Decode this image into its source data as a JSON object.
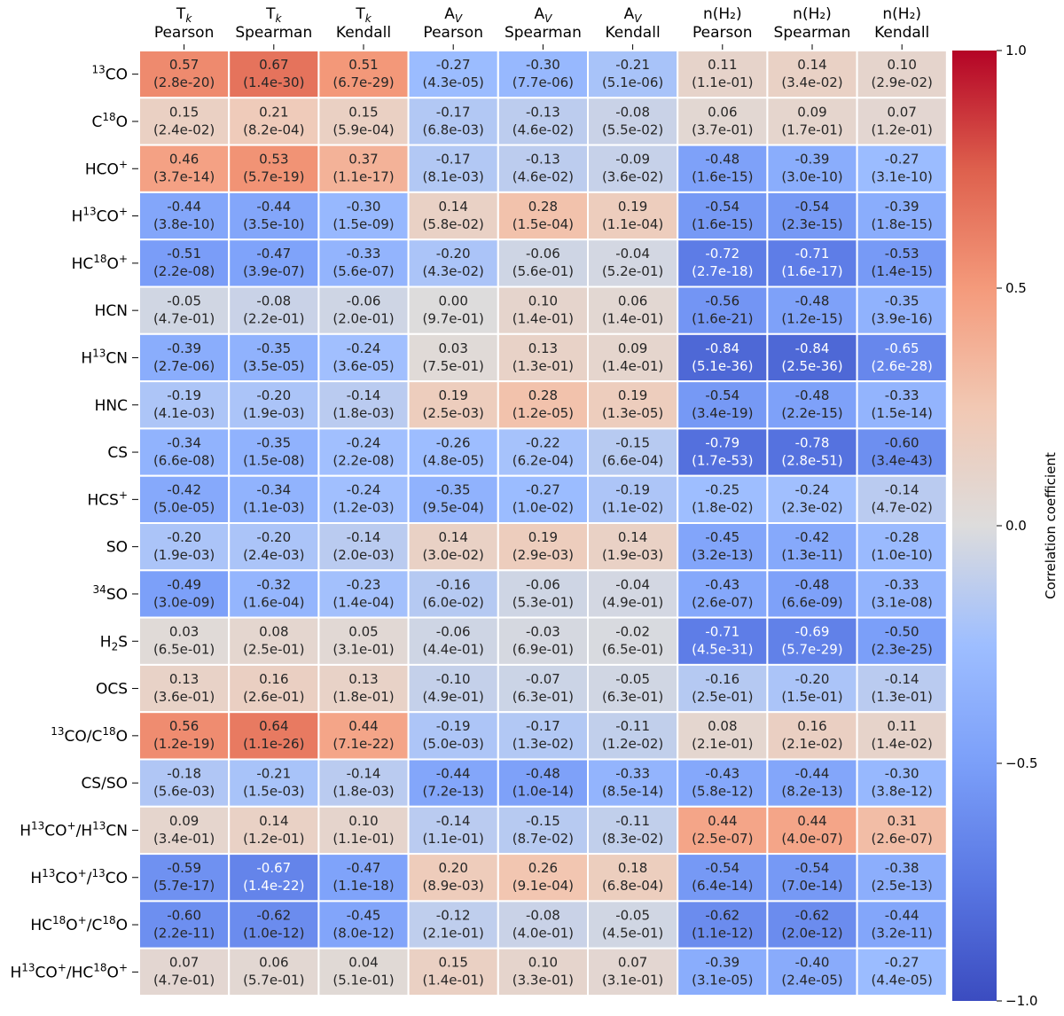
{
  "chart_data": {
    "type": "heatmap",
    "colorbar": {
      "label": "Correlation coefficient",
      "vmin": -1.0,
      "vmax": 1.0,
      "ticks": [
        1.0,
        0.5,
        0.0,
        -0.5,
        -1.0
      ],
      "tick_labels": [
        "1.0",
        "0.5",
        "0.0",
        "−0.5",
        "−1.0"
      ],
      "colormap": "coolwarm"
    },
    "columns": [
      {
        "var": "T",
        "sub": "k",
        "method": "Pearson"
      },
      {
        "var": "T",
        "sub": "k",
        "method": "Spearman"
      },
      {
        "var": "T",
        "sub": "k",
        "method": "Kendall"
      },
      {
        "var": "A",
        "sub": "V",
        "method": "Pearson"
      },
      {
        "var": "A",
        "sub": "V",
        "method": "Spearman"
      },
      {
        "var": "A",
        "sub": "V",
        "method": "Kendall"
      },
      {
        "var": "n(H₂)",
        "sub": "",
        "method": "Pearson"
      },
      {
        "var": "n(H₂)",
        "sub": "",
        "method": "Spearman"
      },
      {
        "var": "n(H₂)",
        "sub": "",
        "method": "Kendall"
      }
    ],
    "rows": [
      {
        "label": "13CO",
        "parts": [
          [
            "13",
            "sup"
          ],
          [
            "CO",
            ""
          ]
        ],
        "values": [
          0.57,
          0.67,
          0.51,
          -0.27,
          -0.3,
          -0.21,
          0.11,
          0.14,
          0.1
        ],
        "pvalues": [
          "2.8e-20",
          "1.4e-30",
          "6.7e-29",
          "4.3e-05",
          "7.7e-06",
          "5.1e-06",
          "1.1e-01",
          "3.4e-02",
          "2.9e-02"
        ]
      },
      {
        "label": "C18O",
        "parts": [
          [
            "C",
            ""
          ],
          [
            "18",
            "sup"
          ],
          [
            "O",
            ""
          ]
        ],
        "values": [
          0.15,
          0.21,
          0.15,
          -0.17,
          -0.13,
          -0.08,
          0.06,
          0.09,
          0.07
        ],
        "pvalues": [
          "2.4e-02",
          "8.2e-04",
          "5.9e-04",
          "6.8e-03",
          "4.6e-02",
          "5.5e-02",
          "3.7e-01",
          "1.7e-01",
          "1.2e-01"
        ]
      },
      {
        "label": "HCO+",
        "parts": [
          [
            "HCO",
            ""
          ],
          [
            "+",
            "sup"
          ]
        ],
        "values": [
          0.46,
          0.53,
          0.37,
          -0.17,
          -0.13,
          -0.09,
          -0.48,
          -0.39,
          -0.27
        ],
        "pvalues": [
          "3.7e-14",
          "5.7e-19",
          "1.1e-17",
          "8.1e-03",
          "4.6e-02",
          "3.6e-02",
          "1.6e-15",
          "3.0e-10",
          "3.1e-10"
        ]
      },
      {
        "label": "H13CO+",
        "parts": [
          [
            "H",
            ""
          ],
          [
            "13",
            "sup"
          ],
          [
            "CO",
            ""
          ],
          [
            "+",
            "sup"
          ]
        ],
        "values": [
          -0.44,
          -0.44,
          -0.3,
          0.14,
          0.28,
          0.19,
          -0.54,
          -0.54,
          -0.39
        ],
        "pvalues": [
          "3.8e-10",
          "3.5e-10",
          "1.5e-09",
          "5.8e-02",
          "1.5e-04",
          "1.1e-04",
          "1.6e-15",
          "2.3e-15",
          "1.8e-15"
        ]
      },
      {
        "label": "HC18O+",
        "parts": [
          [
            "HC",
            ""
          ],
          [
            "18",
            "sup"
          ],
          [
            "O",
            ""
          ],
          [
            "+",
            "sup"
          ]
        ],
        "values": [
          -0.51,
          -0.47,
          -0.33,
          -0.2,
          -0.06,
          -0.04,
          -0.72,
          -0.71,
          -0.53
        ],
        "pvalues": [
          "2.2e-08",
          "3.9e-07",
          "5.6e-07",
          "4.3e-02",
          "5.6e-01",
          "5.2e-01",
          "2.7e-18",
          "1.6e-17",
          "1.4e-15"
        ]
      },
      {
        "label": "HCN",
        "parts": [
          [
            "HCN",
            ""
          ]
        ],
        "values": [
          -0.05,
          -0.08,
          -0.06,
          0.0,
          0.1,
          0.06,
          -0.56,
          -0.48,
          -0.35
        ],
        "pvalues": [
          "4.7e-01",
          "2.2e-01",
          "2.0e-01",
          "9.7e-01",
          "1.4e-01",
          "1.4e-01",
          "1.6e-21",
          "1.2e-15",
          "3.9e-16"
        ]
      },
      {
        "label": "H13CN",
        "parts": [
          [
            "H",
            ""
          ],
          [
            "13",
            "sup"
          ],
          [
            "CN",
            ""
          ]
        ],
        "values": [
          -0.39,
          -0.35,
          -0.24,
          0.03,
          0.13,
          0.09,
          -0.84,
          -0.84,
          -0.65
        ],
        "pvalues": [
          "2.7e-06",
          "3.5e-05",
          "3.6e-05",
          "7.5e-01",
          "1.3e-01",
          "1.4e-01",
          "5.1e-36",
          "2.5e-36",
          "2.6e-28"
        ]
      },
      {
        "label": "HNC",
        "parts": [
          [
            "HNC",
            ""
          ]
        ],
        "values": [
          -0.19,
          -0.2,
          -0.14,
          0.19,
          0.28,
          0.19,
          -0.54,
          -0.48,
          -0.33
        ],
        "pvalues": [
          "4.1e-03",
          "1.9e-03",
          "1.8e-03",
          "2.5e-03",
          "1.2e-05",
          "1.3e-05",
          "3.4e-19",
          "2.2e-15",
          "1.5e-14"
        ]
      },
      {
        "label": "CS",
        "parts": [
          [
            "CS",
            ""
          ]
        ],
        "values": [
          -0.34,
          -0.35,
          -0.24,
          -0.26,
          -0.22,
          -0.15,
          -0.79,
          -0.78,
          -0.6
        ],
        "pvalues": [
          "6.6e-08",
          "1.5e-08",
          "2.2e-08",
          "4.8e-05",
          "6.2e-04",
          "6.6e-04",
          "1.7e-53",
          "2.8e-51",
          "3.4e-43"
        ]
      },
      {
        "label": "HCS+",
        "parts": [
          [
            "HCS",
            ""
          ],
          [
            "+",
            "sup"
          ]
        ],
        "values": [
          -0.42,
          -0.34,
          -0.24,
          -0.35,
          -0.27,
          -0.19,
          -0.25,
          -0.24,
          -0.14
        ],
        "pvalues": [
          "5.0e-05",
          "1.1e-03",
          "1.2e-03",
          "9.5e-04",
          "1.0e-02",
          "1.1e-02",
          "1.8e-02",
          "2.3e-02",
          "4.7e-02"
        ]
      },
      {
        "label": "SO",
        "parts": [
          [
            "SO",
            ""
          ]
        ],
        "values": [
          -0.2,
          -0.2,
          -0.14,
          0.14,
          0.19,
          0.14,
          -0.45,
          -0.42,
          -0.28
        ],
        "pvalues": [
          "1.9e-03",
          "2.4e-03",
          "2.0e-03",
          "3.0e-02",
          "2.9e-03",
          "1.9e-03",
          "3.2e-13",
          "1.3e-11",
          "1.0e-10"
        ]
      },
      {
        "label": "34SO",
        "parts": [
          [
            "34",
            "sup"
          ],
          [
            "SO",
            ""
          ]
        ],
        "values": [
          -0.49,
          -0.32,
          -0.23,
          -0.16,
          -0.06,
          -0.04,
          -0.43,
          -0.48,
          -0.33
        ],
        "pvalues": [
          "3.0e-09",
          "1.6e-04",
          "1.4e-04",
          "6.0e-02",
          "5.3e-01",
          "4.9e-01",
          "2.6e-07",
          "6.6e-09",
          "3.1e-08"
        ]
      },
      {
        "label": "H2S",
        "parts": [
          [
            "H",
            ""
          ],
          [
            "2",
            "sub"
          ],
          [
            "S",
            ""
          ]
        ],
        "values": [
          0.03,
          0.08,
          0.05,
          -0.06,
          -0.03,
          -0.02,
          -0.71,
          -0.69,
          -0.5
        ],
        "pvalues": [
          "6.5e-01",
          "2.5e-01",
          "3.1e-01",
          "4.4e-01",
          "6.9e-01",
          "6.5e-01",
          "4.5e-31",
          "5.7e-29",
          "2.3e-25"
        ]
      },
      {
        "label": "OCS",
        "parts": [
          [
            "OCS",
            ""
          ]
        ],
        "values": [
          0.13,
          0.16,
          0.13,
          -0.1,
          -0.07,
          -0.05,
          -0.16,
          -0.2,
          -0.14
        ],
        "pvalues": [
          "3.6e-01",
          "2.6e-01",
          "1.8e-01",
          "4.9e-01",
          "6.3e-01",
          "6.3e-01",
          "2.5e-01",
          "1.5e-01",
          "1.3e-01"
        ]
      },
      {
        "label": "13CO/C18O",
        "parts": [
          [
            "13",
            "sup"
          ],
          [
            "CO/C",
            ""
          ],
          [
            "18",
            "sup"
          ],
          [
            "O",
            ""
          ]
        ],
        "values": [
          0.56,
          0.64,
          0.44,
          -0.19,
          -0.17,
          -0.11,
          0.08,
          0.16,
          0.11
        ],
        "pvalues": [
          "1.2e-19",
          "1.1e-26",
          "7.1e-22",
          "5.0e-03",
          "1.3e-02",
          "1.2e-02",
          "2.1e-01",
          "2.1e-02",
          "1.4e-02"
        ]
      },
      {
        "label": "CS/SO",
        "parts": [
          [
            "CS/SO",
            ""
          ]
        ],
        "values": [
          -0.18,
          -0.21,
          -0.14,
          -0.44,
          -0.48,
          -0.33,
          -0.43,
          -0.44,
          -0.3
        ],
        "pvalues": [
          "5.6e-03",
          "1.5e-03",
          "1.8e-03",
          "7.2e-13",
          "1.0e-14",
          "8.5e-14",
          "5.8e-12",
          "8.2e-13",
          "3.8e-12"
        ]
      },
      {
        "label": "H13CO+/H13CN",
        "parts": [
          [
            "H",
            ""
          ],
          [
            "13",
            "sup"
          ],
          [
            "CO",
            ""
          ],
          [
            "+",
            "sup"
          ],
          [
            "/H",
            ""
          ],
          [
            "13",
            "sup"
          ],
          [
            "CN",
            ""
          ]
        ],
        "values": [
          0.09,
          0.14,
          0.1,
          -0.14,
          -0.15,
          -0.11,
          0.44,
          0.44,
          0.31
        ],
        "pvalues": [
          "3.4e-01",
          "1.2e-01",
          "1.1e-01",
          "1.1e-01",
          "8.7e-02",
          "8.3e-02",
          "2.5e-07",
          "4.0e-07",
          "2.6e-07"
        ]
      },
      {
        "label": "H13CO+/13CO",
        "parts": [
          [
            "H",
            ""
          ],
          [
            "13",
            "sup"
          ],
          [
            "CO",
            ""
          ],
          [
            "+",
            "sup"
          ],
          [
            "/",
            ""
          ],
          [
            "13",
            "sup"
          ],
          [
            "CO",
            ""
          ]
        ],
        "values": [
          -0.59,
          -0.67,
          -0.47,
          0.2,
          0.26,
          0.18,
          -0.54,
          -0.54,
          -0.38
        ],
        "pvalues": [
          "5.7e-17",
          "1.4e-22",
          "1.1e-18",
          "8.9e-03",
          "9.1e-04",
          "6.8e-04",
          "6.4e-14",
          "7.0e-14",
          "2.5e-13"
        ]
      },
      {
        "label": "HC18O+/C18O",
        "parts": [
          [
            "HC",
            ""
          ],
          [
            "18",
            "sup"
          ],
          [
            "O",
            ""
          ],
          [
            "+",
            "sup"
          ],
          [
            "/C",
            ""
          ],
          [
            "18",
            "sup"
          ],
          [
            "O",
            ""
          ]
        ],
        "values": [
          -0.6,
          -0.62,
          -0.45,
          -0.12,
          -0.08,
          -0.05,
          -0.62,
          -0.62,
          -0.44
        ],
        "pvalues": [
          "2.2e-11",
          "1.0e-12",
          "8.0e-12",
          "2.1e-01",
          "4.0e-01",
          "4.5e-01",
          "1.1e-12",
          "2.0e-12",
          "3.2e-11"
        ]
      },
      {
        "label": "H13CO+/HC18O+",
        "parts": [
          [
            "H",
            ""
          ],
          [
            "13",
            "sup"
          ],
          [
            "CO",
            ""
          ],
          [
            "+",
            "sup"
          ],
          [
            "/HC",
            ""
          ],
          [
            "18",
            "sup"
          ],
          [
            "O",
            ""
          ],
          [
            "+",
            "sup"
          ]
        ],
        "values": [
          0.07,
          0.06,
          0.04,
          0.15,
          0.1,
          0.07,
          -0.39,
          -0.4,
          -0.27
        ],
        "pvalues": [
          "4.7e-01",
          "5.7e-01",
          "5.1e-01",
          "1.4e-01",
          "3.3e-01",
          "3.1e-01",
          "3.1e-05",
          "2.4e-05",
          "4.4e-05"
        ]
      }
    ]
  }
}
